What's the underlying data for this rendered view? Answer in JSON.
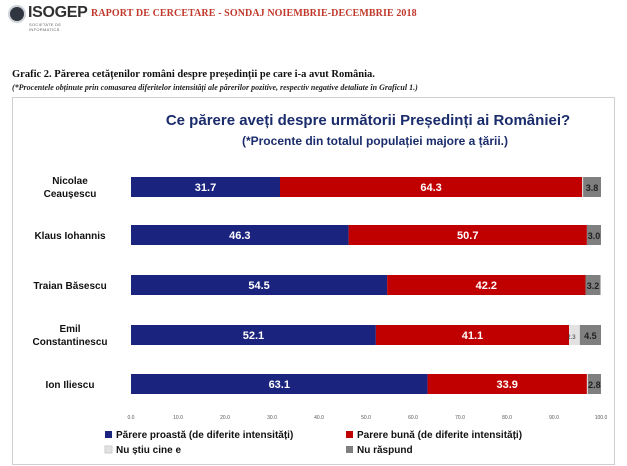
{
  "header": {
    "logo_text": "ISOGEP",
    "logo_subtext": "SOCIETATE DE INFORMATICĂ",
    "title": "RAPORT DE CERCETARE - SONDAJ NOIEMBRIE-DECEMBRIE 2018"
  },
  "figure": {
    "title": "Grafic 2. Părerea cetățenilor români despre președinții pe care i-a avut România.",
    "note": "(*Procentele obținute prin comasarea diferitelor intensități ale părerilor pozitive, respectiv negative detaliate în Graficul 1.)"
  },
  "chart_data": {
    "type": "bar",
    "orientation": "horizontal",
    "stacked": true,
    "title": "Ce părere aveți despre următorii Președinți ai României?",
    "subtitle": "(*Procente din totalul populației majore a țării.)",
    "categories": [
      [
        "Nicolae",
        "Ceaușescu"
      ],
      [
        "Klaus Iohannis"
      ],
      [
        "Traian Băsescu"
      ],
      [
        "Emil",
        "Constantinescu"
      ],
      [
        "Ion Iliescu"
      ]
    ],
    "series": [
      {
        "name": "Părere proastă (de diferite intensități)",
        "color": "#1a237e",
        "values": [
          31.7,
          46.3,
          54.5,
          52.1,
          63.1
        ],
        "labels": [
          "31.7",
          "46.3",
          "54.5",
          "52.1",
          "63.1"
        ]
      },
      {
        "name": "Parere bună (de diferite intensități)",
        "color": "#c00000",
        "values": [
          64.3,
          50.7,
          42.2,
          41.1,
          33.9
        ],
        "labels": [
          "64.3",
          "50.7",
          "42.2",
          "41.1",
          "33.9"
        ]
      },
      {
        "name": "Nu știu cine e",
        "color": "#e2e2e2",
        "values": [
          0.2,
          0,
          0,
          2.3,
          0.2
        ],
        "labels": [
          "",
          "",
          "",
          "2.3",
          ""
        ]
      },
      {
        "name": "Nu răspund",
        "color": "#7f7f7f",
        "values": [
          3.8,
          3.0,
          3.2,
          4.5,
          2.8
        ],
        "labels": [
          "3.8",
          "3.0",
          "3.2",
          "4.5",
          "2.8"
        ]
      }
    ],
    "xlim": [
      0,
      100
    ],
    "xticks": [
      "0.0",
      "10.0",
      "20.0",
      "30.0",
      "40.0",
      "50.0",
      "60.0",
      "70.0",
      "80.0",
      "90.0",
      "100.0"
    ],
    "grid": false,
    "legend_position": "bottom"
  }
}
